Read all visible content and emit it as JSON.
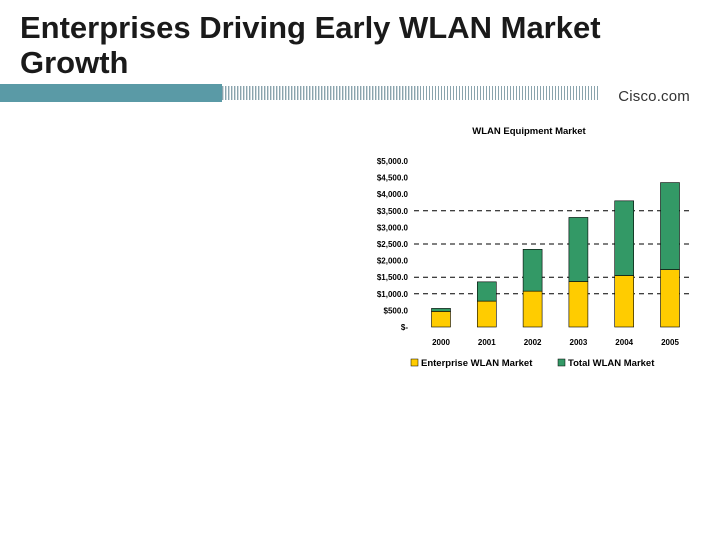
{
  "slide": {
    "title": "Enterprises Driving Early WLAN Market Growth",
    "brand": "Cisco.com"
  },
  "colors": {
    "band_teal": "#5a9aa6",
    "enterprise": "#ffcc00",
    "total": "#339966"
  },
  "chart_data": {
    "type": "bar",
    "stacked": true,
    "title": "WLAN Equipment Market",
    "categories": [
      "2000",
      "2001",
      "2002",
      "2003",
      "2004",
      "2005"
    ],
    "y_tick_labels": [
      "$-",
      "$500.0",
      "$1,000.0",
      "$1,500.0",
      "$2,000.0",
      "$2,500.0",
      "$3,000.0",
      "$3,500.0",
      "$4,000.0",
      "$4,500.0",
      "$5,000.0"
    ],
    "ylim": [
      0,
      5000
    ],
    "series": [
      {
        "name": "Enterprise WLAN Market",
        "values": [
          470,
          780,
          1080,
          1370,
          1550,
          1730
        ]
      },
      {
        "name": "Total WLAN Market",
        "values": [
          90,
          580,
          1260,
          1930,
          2250,
          2620
        ]
      }
    ],
    "legend_position": "bottom",
    "gridlines": "dashed at $1,000, $1,500, $2,500 and $3,500"
  }
}
